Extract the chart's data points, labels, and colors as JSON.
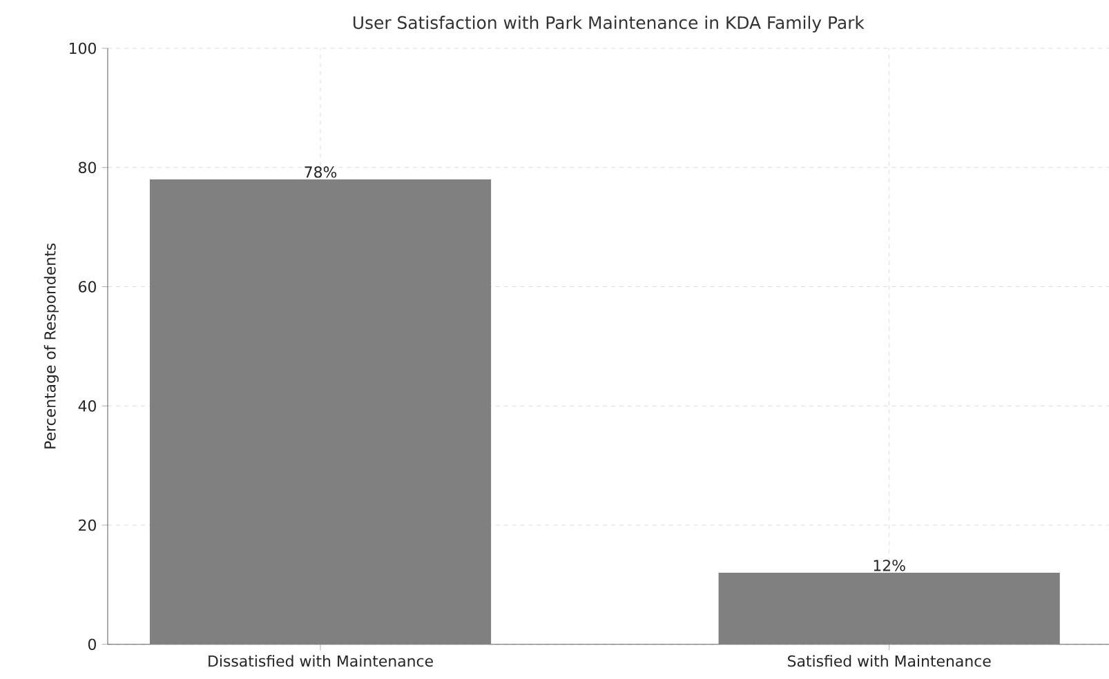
{
  "chart_data": {
    "type": "bar",
    "title": "User Satisfaction with Park Maintenance in KDA Family Park",
    "ylabel": "Percentage of Respondents",
    "categories": [
      "Dissatisfied with Maintenance",
      "Satisfied with Maintenance"
    ],
    "values": [
      78,
      12
    ],
    "color": "#808080",
    "value_labels": [
      "78%",
      "12%"
    ],
    "ylim": [
      0,
      100
    ],
    "yticks": [
      0,
      20,
      40,
      60,
      80,
      100
    ],
    "grid": true
  }
}
